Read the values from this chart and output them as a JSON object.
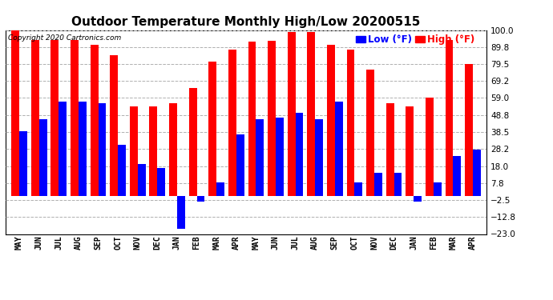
{
  "title": "Outdoor Temperature Monthly High/Low 20200515",
  "copyright": "Copyright 2020 Cartronics.com",
  "legend_low": "Low (°F)",
  "legend_high": "High (°F)",
  "months": [
    "MAY",
    "JUN",
    "JUL",
    "AUG",
    "SEP",
    "OCT",
    "NOV",
    "DEC",
    "JAN",
    "FEB",
    "MAR",
    "APR",
    "MAY",
    "JUN",
    "JUL",
    "AUG",
    "SEP",
    "OCT",
    "NOV",
    "DEC",
    "JAN",
    "FEB",
    "MAR",
    "APR"
  ],
  "high": [
    100.0,
    94.0,
    94.0,
    94.0,
    91.0,
    85.0,
    54.0,
    54.0,
    56.0,
    65.0,
    81.0,
    88.0,
    93.0,
    93.5,
    99.0,
    99.0,
    91.0,
    88.0,
    76.0,
    56.0,
    54.0,
    59.0,
    94.0,
    79.5
  ],
  "low": [
    39.0,
    46.0,
    57.0,
    57.0,
    56.0,
    31.0,
    19.0,
    17.0,
    -20.0,
    -3.5,
    8.0,
    37.0,
    46.0,
    47.0,
    50.0,
    46.0,
    57.0,
    8.0,
    14.0,
    14.0,
    -3.5,
    8.0,
    24.0,
    28.0
  ],
  "yticks": [
    -23.0,
    -12.8,
    -2.5,
    7.8,
    18.0,
    28.2,
    38.5,
    48.8,
    59.0,
    69.2,
    79.5,
    89.8,
    100.0
  ],
  "ymin": -23.0,
  "ymax": 100.0,
  "high_color": "#ff0000",
  "low_color": "#0000ff",
  "background_color": "#ffffff",
  "grid_color": "#b0b0b0",
  "title_fontsize": 11,
  "bar_width": 0.4,
  "figwidth": 6.9,
  "figheight": 3.75,
  "dpi": 100
}
